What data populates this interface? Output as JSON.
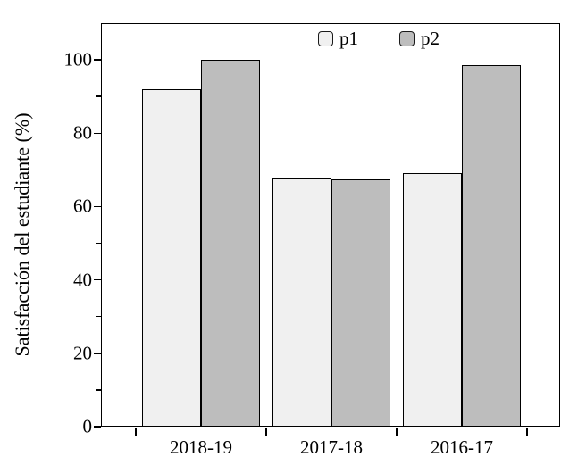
{
  "chart_data": {
    "type": "bar",
    "title": "",
    "xlabel": "",
    "ylabel": "Satisfacción del estudiante (%)",
    "categories": [
      "2018-19",
      "2017-18",
      "2016-17"
    ],
    "series": [
      {
        "name": "p1",
        "color": "#f0f0f0",
        "values": [
          92,
          68,
          69
        ]
      },
      {
        "name": "p2",
        "color": "#bdbdbd",
        "values": [
          100,
          67.5,
          98.5
        ]
      }
    ],
    "ylim": [
      0,
      110
    ],
    "y_ticks": [
      0,
      20,
      40,
      60,
      80,
      100
    ],
    "y_minor_ticks": [
      10,
      30,
      50,
      70,
      90
    ],
    "grid": "off",
    "legend_position": "top-center-inside",
    "bar_edge_color": "#000000",
    "axis_color": "#000000",
    "background_color": "#ffffff"
  }
}
